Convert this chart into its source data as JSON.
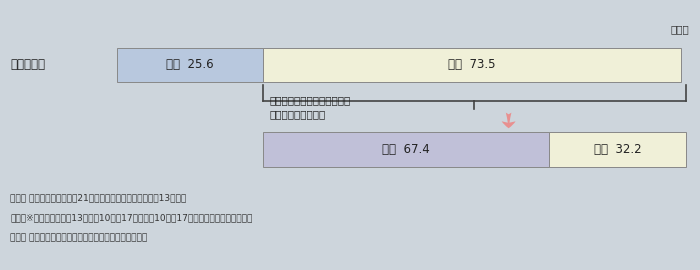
{
  "bg_color": "#cdd5dc",
  "bar1_label": "出産１年前",
  "bar1_seg1_label": "無職  25.6",
  "bar1_seg1_value": 25.6,
  "bar1_seg1_color": "#b8c8de",
  "bar1_seg2_label": "有職  73.5",
  "bar1_seg2_value": 73.5,
  "bar1_seg2_color": "#f0f0d8",
  "bar2_seg1_label": "無職  67.4",
  "bar2_seg1_value": 67.4,
  "bar2_seg1_color": "#c0c0d8",
  "bar2_seg2_label": "有職  32.2",
  "bar2_seg2_value": 32.2,
  "bar2_seg2_color": "#f0f0d8",
  "percent_label": "（％）",
  "arrow_label_line1": "出産１年前に有職だった者の",
  "arrow_label_line2": "出産６か月後の状況",
  "footer_line1": "資料： 厚生労働省「第１回21世紀出生児縦断調査」（平成13年度）",
  "footer_line2": "　　　※調査対象：平成13年１月10日〜17日、７月10日〜17日の間に出生した子の母親",
  "footer_line3": "　注： きょうだい数１人（本人のみ）の母について集計",
  "bar1_seg1_pct": 25.6,
  "bar1_seg2_pct": 73.5,
  "bar2_seg1_pct": 67.4,
  "bar2_seg2_pct": 32.2
}
